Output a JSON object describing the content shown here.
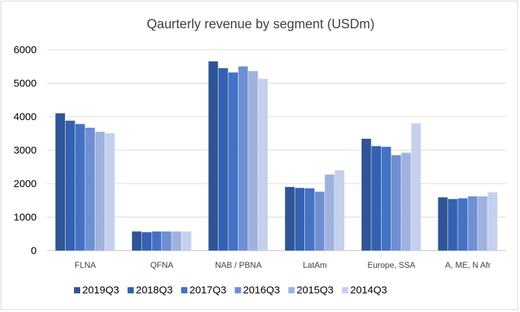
{
  "chart_data": {
    "type": "bar",
    "title": "Qaurterly revenue by segment (USDm)",
    "xlabel": "",
    "ylabel": "",
    "ylim": [
      0,
      6000
    ],
    "yticks": [
      0,
      1000,
      2000,
      3000,
      4000,
      5000,
      6000
    ],
    "grid": true,
    "legend_position": "bottom",
    "categories": [
      "FLNA",
      "QFNA",
      "NAB / PBNA",
      "LatAm",
      "Europe, SSA",
      "A, ME, N Afr"
    ],
    "series": [
      {
        "name": "2019Q3",
        "color": "#2f5597",
        "values": [
          4100,
          570,
          5650,
          1900,
          3340,
          1590
        ]
      },
      {
        "name": "2018Q3",
        "color": "#3461b1",
        "values": [
          3880,
          550,
          5450,
          1870,
          3120,
          1540
        ]
      },
      {
        "name": "2017Q3",
        "color": "#4472c4",
        "values": [
          3780,
          570,
          5320,
          1860,
          3100,
          1560
        ]
      },
      {
        "name": "2016Q3",
        "color": "#6f8fd3",
        "values": [
          3670,
          570,
          5500,
          1760,
          2850,
          1620
        ]
      },
      {
        "name": "2015Q3",
        "color": "#9fb2df",
        "values": [
          3550,
          570,
          5360,
          2270,
          2920,
          1620
        ]
      },
      {
        "name": "2014Q3",
        "color": "#c5d0ec",
        "values": [
          3500,
          570,
          5130,
          2400,
          3800,
          1740
        ]
      }
    ]
  }
}
